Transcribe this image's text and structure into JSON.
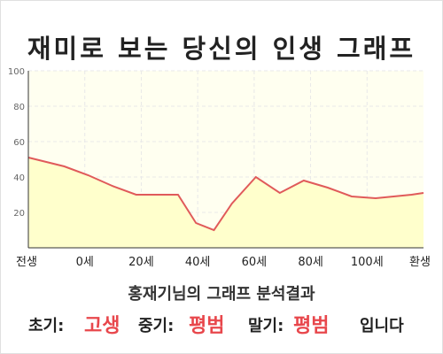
{
  "title": "재미로 보는 당신의 인생 그래프",
  "subtitle": "홍재기님의 그래프 분석결과",
  "summary": {
    "early_label": "초기:",
    "early_value": "고생",
    "mid_label": "중기:",
    "mid_value": "평범",
    "late_label": "말기:",
    "late_value": "평범",
    "ending": "입니다"
  },
  "colors": {
    "line": "#e05a5a",
    "fill": "#ffffcc",
    "accent": "#e8474c"
  },
  "chart_data": {
    "type": "area",
    "x_labels": [
      "전생",
      "0세",
      "20세",
      "40세",
      "60세",
      "80세",
      "100세",
      "환생"
    ],
    "x": [
      -20,
      -8,
      0,
      8,
      16,
      20,
      24,
      30,
      36,
      42,
      48,
      56,
      64,
      72,
      80,
      88,
      96,
      102,
      108,
      112
    ],
    "values": [
      51,
      46,
      41,
      35,
      30,
      30,
      30,
      30,
      14,
      10,
      25,
      40,
      31,
      38,
      34,
      29,
      28,
      29,
      30,
      31
    ],
    "yticks": [
      100,
      80,
      60,
      40,
      20
    ],
    "ylim": [
      0,
      100
    ],
    "xlim": [
      -20,
      112
    ],
    "grid": true,
    "legend": false
  }
}
